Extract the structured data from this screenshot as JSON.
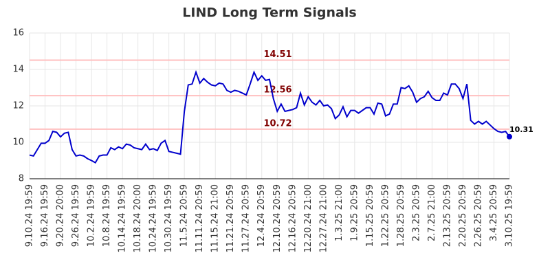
{
  "chart_data": {
    "type": "line",
    "title": "LIND Long Term Signals",
    "categories": [
      "9.10.24 19:59",
      null,
      null,
      null,
      "9.16.24 19:59",
      null,
      null,
      null,
      "9.20.24 20:00",
      null,
      null,
      null,
      "9.26.24 19:59",
      null,
      null,
      null,
      "10.2.24 19:59",
      null,
      null,
      null,
      "10.8.24 19:59",
      null,
      null,
      null,
      "10.14.24 19:59",
      null,
      null,
      null,
      "10.18.24 20:00",
      null,
      null,
      null,
      "10.24.24 19:59",
      null,
      null,
      null,
      "10.30.24 19:59",
      null,
      null,
      null,
      "11.5.24 20:59",
      null,
      null,
      null,
      "11.11.24 20:59",
      null,
      null,
      null,
      "11.15.24 21:00",
      null,
      null,
      null,
      "11.21.24 20:59",
      null,
      null,
      null,
      "11.27.24 20:59",
      null,
      null,
      null,
      "12.4.24 20:59",
      null,
      null,
      null,
      "12.10.24 20:59",
      null,
      null,
      null,
      "12.16.24 20:59",
      null,
      null,
      null,
      "12.20.24 21:00",
      null,
      null,
      null,
      "12.27.24 21:00",
      null,
      null,
      null,
      "1.3.25 21:00",
      null,
      null,
      null,
      "1.9.25 20:59",
      null,
      null,
      null,
      "1.15.25 20:59",
      null,
      null,
      null,
      "1.22.25 20:59",
      null,
      null,
      null,
      "1.28.25 20:59",
      null,
      null,
      null,
      "2.3.25 20:59",
      null,
      null,
      null,
      "2.7.25 21:00",
      null,
      null,
      null,
      "2.13.25 20:59",
      null,
      null,
      null,
      "2.20.25 20:59",
      null,
      null,
      null,
      "2.26.25 20:59",
      null,
      null,
      null,
      "3.4.25 20:59",
      null,
      null,
      null,
      "3.10.25 19:59"
    ],
    "values": [
      9.3,
      9.25,
      9.6,
      9.95,
      9.95,
      10.1,
      10.6,
      10.55,
      10.3,
      10.5,
      10.55,
      9.6,
      9.25,
      9.3,
      9.25,
      9.1,
      9.0,
      8.88,
      9.25,
      9.3,
      9.3,
      9.7,
      9.6,
      9.75,
      9.65,
      9.9,
      9.85,
      9.7,
      9.65,
      9.6,
      9.9,
      9.6,
      9.65,
      9.55,
      9.95,
      10.1,
      9.5,
      9.45,
      9.4,
      9.35,
      11.7,
      13.15,
      13.2,
      13.85,
      13.25,
      13.5,
      13.3,
      13.15,
      13.1,
      13.25,
      13.2,
      12.85,
      12.75,
      12.85,
      12.8,
      12.7,
      12.6,
      13.2,
      13.85,
      13.4,
      13.65,
      13.4,
      13.45,
      12.4,
      11.7,
      12.1,
      11.7,
      11.75,
      11.8,
      11.9,
      12.7,
      12.05,
      12.5,
      12.2,
      12.05,
      12.3,
      12.0,
      12.05,
      11.85,
      11.3,
      11.5,
      11.95,
      11.4,
      11.75,
      11.75,
      11.6,
      11.75,
      11.9,
      11.9,
      11.55,
      12.15,
      12.1,
      11.45,
      11.55,
      12.1,
      12.1,
      13.0,
      12.95,
      13.1,
      12.75,
      12.2,
      12.4,
      12.5,
      12.8,
      12.45,
      12.3,
      12.3,
      12.7,
      12.6,
      13.2,
      13.2,
      12.95,
      12.4,
      13.2,
      11.2,
      11.0,
      11.15,
      11.0,
      11.15,
      10.95,
      10.75,
      10.6,
      10.55,
      10.6,
      10.31
    ],
    "color": "#0000cc",
    "hlines": [
      14.51,
      12.56,
      10.72
    ],
    "hline_color": "#ffbfbf",
    "hline_label_color": "#800000",
    "ylim": [
      8,
      16
    ],
    "yticks": [
      8,
      10,
      12,
      14,
      16
    ],
    "grid": true
  }
}
